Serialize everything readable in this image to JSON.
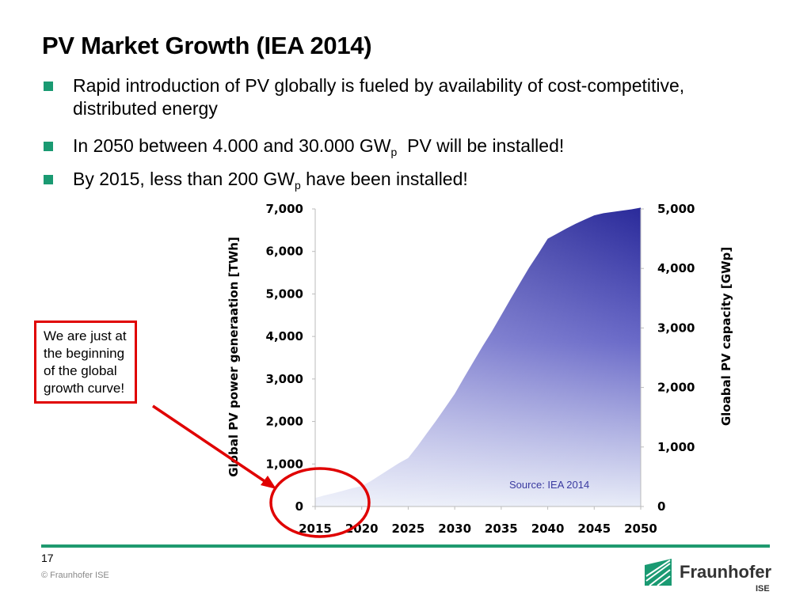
{
  "slide": {
    "title": "PV Market Growth (IEA 2014)",
    "bullets": [
      {
        "text": "Rapid introduction of PV globally is fueled by availability of cost-competitive, distributed energy"
      },
      {
        "pre": "In 2050 between 4.000 and 30.000 GW",
        "sub": "p",
        "post": "  PV will be installed!"
      },
      {
        "pre": "By 2015, less than 200 GW",
        "sub": "p",
        "post": " have been installed!"
      }
    ],
    "callout": "We are just at the beginning of the global growth curve!",
    "page_number": "17",
    "copyright": "© Fraunhofer ISE",
    "logo_text": "Fraunhofer",
    "logo_sub": "ISE"
  },
  "colors": {
    "accent_green": "#1a9a72",
    "callout_red": "#e00000",
    "area_top": "#2a2a9a",
    "area_bottom": "#e8ecf8"
  },
  "chart_data": {
    "type": "area",
    "title": "",
    "x": [
      2015,
      2016,
      2017,
      2018,
      2019,
      2020,
      2021,
      2022,
      2023,
      2024,
      2025,
      2026,
      2027,
      2028,
      2029,
      2030,
      2031,
      2032,
      2033,
      2034,
      2035,
      2036,
      2037,
      2038,
      2039,
      2040,
      2041,
      2042,
      2043,
      2044,
      2045,
      2046,
      2047,
      2048,
      2049,
      2050
    ],
    "series": [
      {
        "values": [
          200,
          260,
          310,
          370,
          430,
          480,
          600,
          740,
          880,
          1020,
          1140,
          1420,
          1720,
          2020,
          2330,
          2650,
          3030,
          3400,
          3770,
          4120,
          4500,
          4880,
          5250,
          5620,
          5950,
          6300,
          6420,
          6540,
          6650,
          6750,
          6850,
          6900,
          6930,
          6960,
          6990,
          7030
        ]
      }
    ],
    "xticks": [
      "2015",
      "2020",
      "2025",
      "2030",
      "2035",
      "2040",
      "2045",
      "2050"
    ],
    "ylabel": "Global PV power generaation  [TWh]",
    "yticks_left": [
      "7,000",
      "6,000",
      "5,000",
      "4,000",
      "3,000",
      "2,000",
      "1,000",
      "0"
    ],
    "y2label": "Gloabal PV capacity [GWp]",
    "yticks_right": [
      "5,000",
      "4,000",
      "3,000",
      "2,000",
      "1,000",
      "0"
    ],
    "ylim": [
      0,
      7000
    ],
    "y2lim": [
      0,
      5000
    ],
    "annotation": "Source:  IEA 2014",
    "grid": false
  }
}
